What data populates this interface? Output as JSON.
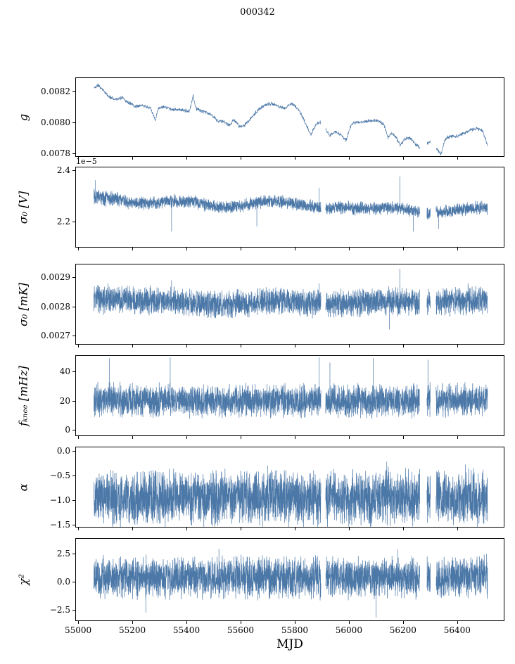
{
  "figure": {
    "title": "000342",
    "xlabel": "MJD",
    "line_color": "#4c78a8",
    "axis_color": "#000000",
    "background": "#ffffff"
  },
  "chart_data": {
    "type": "line",
    "description": "Six vertically stacked noisy time-series panels sharing an MJD x-axis",
    "x_axis": {
      "label": "MJD",
      "lim": [
        54992,
        56572
      ],
      "ticks": [
        55000,
        55200,
        55400,
        55600,
        55800,
        56000,
        56200,
        56400
      ],
      "tick_labels": [
        "55000",
        "55200",
        "55400",
        "55600",
        "55800",
        "56000",
        "56200",
        "56400"
      ],
      "data_range": [
        55058,
        56512
      ],
      "gaps": [
        [
          55897,
          55914
        ],
        [
          56262,
          56288
        ],
        [
          56301,
          56322
        ]
      ]
    },
    "panels": [
      {
        "id": "g",
        "ylabel": "g",
        "ylim": [
          0.00778,
          0.008285
        ],
        "yticks": [
          {
            "value": 0.0078,
            "label": "0.0078"
          },
          {
            "value": 0.008,
            "label": "0.0080"
          },
          {
            "value": 0.0082,
            "label": "0.0082"
          }
        ],
        "seed": 11,
        "points": 1600,
        "noise": 1e-05,
        "trend": [
          [
            55058,
            0.00822
          ],
          [
            55075,
            0.00824
          ],
          [
            55095,
            0.0082
          ],
          [
            55110,
            0.00817
          ],
          [
            55130,
            0.00815
          ],
          [
            55150,
            0.00815
          ],
          [
            55165,
            0.00816
          ],
          [
            55180,
            0.00813
          ],
          [
            55195,
            0.00812
          ],
          [
            55210,
            0.0081
          ],
          [
            55230,
            0.00811
          ],
          [
            55250,
            0.0081
          ],
          [
            55268,
            0.00809
          ],
          [
            55285,
            0.00801
          ],
          [
            55295,
            0.00809
          ],
          [
            55320,
            0.0081
          ],
          [
            55350,
            0.00808
          ],
          [
            55380,
            0.00808
          ],
          [
            55410,
            0.00807
          ],
          [
            55425,
            0.00817
          ],
          [
            55435,
            0.00809
          ],
          [
            55460,
            0.00807
          ],
          [
            55490,
            0.00805
          ],
          [
            55515,
            0.00801
          ],
          [
            55540,
            0.008
          ],
          [
            55560,
            0.00798
          ],
          [
            55575,
            0.00802
          ],
          [
            55595,
            0.00797
          ],
          [
            55615,
            0.00798
          ],
          [
            55640,
            0.00803
          ],
          [
            55665,
            0.00808
          ],
          [
            55690,
            0.00811
          ],
          [
            55715,
            0.00812
          ],
          [
            55740,
            0.0081
          ],
          [
            55765,
            0.00809
          ],
          [
            55785,
            0.00812
          ],
          [
            55805,
            0.0081
          ],
          [
            55825,
            0.00805
          ],
          [
            55845,
            0.00797
          ],
          [
            55860,
            0.00792
          ],
          [
            55880,
            0.00799
          ],
          [
            55895,
            0.008
          ],
          [
            55915,
            0.00795
          ],
          [
            55930,
            0.00791
          ],
          [
            55950,
            0.00794
          ],
          [
            55970,
            0.00792
          ],
          [
            55990,
            0.00788
          ],
          [
            56005,
            0.00797
          ],
          [
            56020,
            0.008
          ],
          [
            56050,
            0.008
          ],
          [
            56080,
            0.00801
          ],
          [
            56110,
            0.00801
          ],
          [
            56130,
            0.00798
          ],
          [
            56145,
            0.0079
          ],
          [
            56160,
            0.00793
          ],
          [
            56175,
            0.0079
          ],
          [
            56190,
            0.00785
          ],
          [
            56205,
            0.00789
          ],
          [
            56225,
            0.0079
          ],
          [
            56245,
            0.00786
          ],
          [
            56265,
            0.00783
          ],
          [
            56285,
            0.00786
          ],
          [
            56305,
            0.00788
          ],
          [
            56325,
            0.00783
          ],
          [
            56340,
            0.00779
          ],
          [
            56355,
            0.00789
          ],
          [
            56375,
            0.00791
          ],
          [
            56400,
            0.00791
          ],
          [
            56425,
            0.00793
          ],
          [
            56450,
            0.00795
          ],
          [
            56475,
            0.00796
          ],
          [
            56495,
            0.00794
          ],
          [
            56512,
            0.00785
          ]
        ],
        "spikes": []
      },
      {
        "id": "sigma0-v",
        "ylabel": "σ₀ [V]",
        "offset_text": "1e−5",
        "unit_scale": "1e-5",
        "ylim": [
          2.1,
          2.41
        ],
        "yticks": [
          {
            "value": 2.2,
            "label": "2.2"
          },
          {
            "value": 2.4,
            "label": "2.4"
          }
        ],
        "seed": 22,
        "points": 3200,
        "noise": 0.021,
        "amp_mod": [
          [
            55058,
            1.6
          ],
          [
            55120,
            1.25
          ],
          [
            55180,
            1.0
          ],
          [
            56512,
            1.0
          ]
        ],
        "trend": [
          [
            55058,
            2.305
          ],
          [
            55100,
            2.29
          ],
          [
            55150,
            2.285
          ],
          [
            55200,
            2.27
          ],
          [
            55260,
            2.27
          ],
          [
            55310,
            2.275
          ],
          [
            55360,
            2.28
          ],
          [
            55420,
            2.275
          ],
          [
            55470,
            2.265
          ],
          [
            55520,
            2.255
          ],
          [
            55570,
            2.255
          ],
          [
            55620,
            2.265
          ],
          [
            55670,
            2.275
          ],
          [
            55720,
            2.28
          ],
          [
            55770,
            2.275
          ],
          [
            55820,
            2.265
          ],
          [
            55870,
            2.255
          ],
          [
            55920,
            2.25
          ],
          [
            55970,
            2.255
          ],
          [
            56020,
            2.25
          ],
          [
            56080,
            2.25
          ],
          [
            56140,
            2.252
          ],
          [
            56200,
            2.25
          ],
          [
            56250,
            2.24
          ],
          [
            56285,
            2.225
          ],
          [
            56330,
            2.235
          ],
          [
            56380,
            2.24
          ],
          [
            56430,
            2.248
          ],
          [
            56480,
            2.252
          ],
          [
            56512,
            2.25
          ]
        ],
        "spikes": [
          [
            55063,
            2.36
          ],
          [
            55345,
            2.16
          ],
          [
            55660,
            2.18
          ],
          [
            55890,
            2.33
          ],
          [
            56188,
            2.375
          ],
          [
            56238,
            2.16
          ],
          [
            56332,
            2.17
          ]
        ]
      },
      {
        "id": "sigma0-mk",
        "ylabel": "σ₀ [mK]",
        "ylim": [
          0.00267,
          0.002945
        ],
        "yticks": [
          {
            "value": 0.0027,
            "label": "0.0027"
          },
          {
            "value": 0.0028,
            "label": "0.0028"
          },
          {
            "value": 0.0029,
            "label": "0.0029"
          }
        ],
        "seed": 33,
        "points": 3200,
        "noise": 4e-05,
        "trend": [
          [
            55058,
            0.002825
          ],
          [
            55150,
            0.002822
          ],
          [
            55250,
            0.00282
          ],
          [
            55350,
            0.002818
          ],
          [
            55450,
            0.002812
          ],
          [
            55550,
            0.002805
          ],
          [
            55650,
            0.002812
          ],
          [
            55750,
            0.002818
          ],
          [
            55850,
            0.002812
          ],
          [
            55950,
            0.00281
          ],
          [
            56050,
            0.002812
          ],
          [
            56150,
            0.002818
          ],
          [
            56250,
            0.002815
          ],
          [
            56350,
            0.002818
          ],
          [
            56450,
            0.00282
          ],
          [
            56512,
            0.00282
          ]
        ],
        "spikes": [
          [
            55110,
            0.00288
          ],
          [
            55345,
            0.00289
          ],
          [
            55890,
            0.00288
          ],
          [
            56150,
            0.00272
          ],
          [
            56188,
            0.00293
          ],
          [
            56440,
            0.00288
          ]
        ]
      },
      {
        "id": "fknee",
        "ylabel": "fₖₙₑₑ [mHz]",
        "ylim": [
          -3.7,
          50.5
        ],
        "yticks": [
          {
            "value": 0,
            "label": "0"
          },
          {
            "value": 20,
            "label": "20"
          },
          {
            "value": 40,
            "label": "40"
          }
        ],
        "seed": 44,
        "points": 3200,
        "noise": 9.5,
        "trend": [
          [
            55058,
            20.5
          ],
          [
            55400,
            20
          ],
          [
            55800,
            19.5
          ],
          [
            56200,
            20
          ],
          [
            56512,
            20.5
          ]
        ],
        "spikes": [
          [
            55115,
            49
          ],
          [
            55340,
            49.5
          ],
          [
            55890,
            49.5
          ],
          [
            55930,
            46
          ],
          [
            56090,
            49
          ],
          [
            56292,
            48
          ]
        ]
      },
      {
        "id": "alpha",
        "ylabel": "α",
        "ylim": [
          -1.545,
          0.07
        ],
        "yticks": [
          {
            "value": 0.0,
            "label": "0.0"
          },
          {
            "value": -0.5,
            "label": "−0.5"
          },
          {
            "value": -1.0,
            "label": "−1.0"
          },
          {
            "value": -1.5,
            "label": "−1.5"
          }
        ],
        "seed": 55,
        "points": 3200,
        "noise": 0.47,
        "trend": [
          [
            55058,
            -0.95
          ],
          [
            56512,
            -0.95
          ]
        ],
        "spikes": [
          [
            55700,
            -0.3
          ],
          [
            56140,
            -0.22
          ],
          [
            56430,
            -0.28
          ]
        ]
      },
      {
        "id": "chi2",
        "ylabel": "χ²",
        "ylim": [
          -3.45,
          3.8
        ],
        "yticks": [
          {
            "value": 2.5,
            "label": "2.5"
          },
          {
            "value": 0.0,
            "label": "0.0"
          },
          {
            "value": -2.5,
            "label": "−2.5"
          }
        ],
        "seed": 66,
        "points": 3200,
        "noise": 1.55,
        "trend": [
          [
            55058,
            0.35
          ],
          [
            56512,
            0.4
          ]
        ],
        "spikes": [
          [
            55250,
            -2.75
          ],
          [
            55520,
            2.9
          ],
          [
            56100,
            -3.2
          ],
          [
            56180,
            2.85
          ]
        ]
      }
    ]
  }
}
